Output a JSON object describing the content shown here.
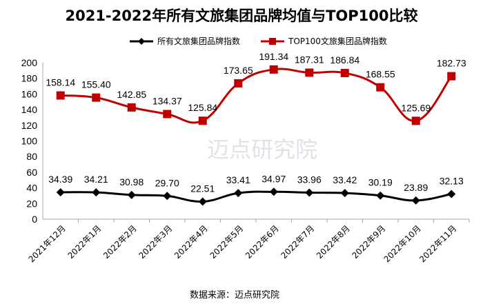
{
  "chart_data": {
    "type": "line",
    "title": "2021-2022年所有文旅集团品牌均值与TOP100比较",
    "categories": [
      "2021年12月",
      "2022年1月",
      "2022年2月",
      "2022年3月",
      "2022年4月",
      "2022年5月",
      "2022年6月",
      "2022年7月",
      "2022年8月",
      "2022年9月",
      "2022年10月",
      "2022年11月"
    ],
    "series": [
      {
        "name": "所有文旅集团品牌指数",
        "color": "#000000",
        "marker": "diamond",
        "values": [
          34.39,
          34.21,
          30.98,
          29.7,
          22.51,
          33.41,
          34.97,
          33.96,
          33.42,
          30.19,
          23.89,
          32.13
        ]
      },
      {
        "name": "TOP100文旅集团品牌指数",
        "color": "#c00000",
        "marker": "square",
        "values": [
          158.14,
          155.4,
          142.85,
          134.37,
          125.84,
          173.65,
          191.34,
          187.31,
          186.84,
          168.55,
          125.69,
          182.73
        ]
      }
    ],
    "ylim": [
      0,
      200
    ],
    "yticks": [
      0,
      20,
      40,
      60,
      80,
      100,
      120,
      140,
      160,
      180,
      200
    ],
    "grid": false,
    "legend_position": "top",
    "data_labels": true
  },
  "source_text": "数据来源：迈点研究院",
  "watermark_text": "迈点研究院"
}
